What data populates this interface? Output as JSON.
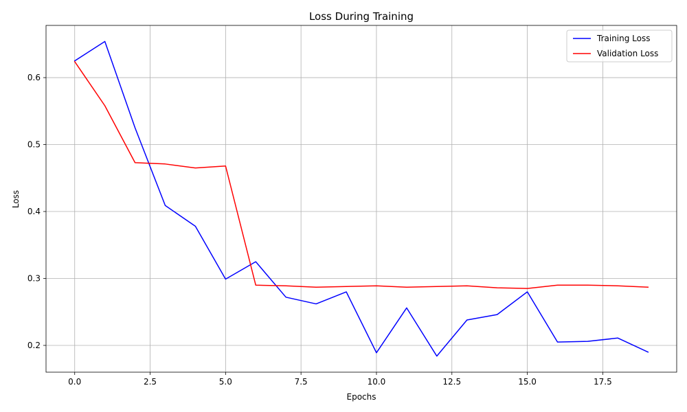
{
  "chart_data": {
    "type": "line",
    "title": "Loss During Training",
    "xlabel": "Epochs",
    "ylabel": "Loss",
    "xlim": [
      -0.95,
      19.95
    ],
    "ylim": [
      0.16,
      0.678
    ],
    "xticks": [
      0.0,
      2.5,
      5.0,
      7.5,
      10.0,
      12.5,
      15.0,
      17.5
    ],
    "xtick_labels": [
      "0.0",
      "2.5",
      "5.0",
      "7.5",
      "10.0",
      "12.5",
      "15.0",
      "17.5"
    ],
    "yticks": [
      0.2,
      0.3,
      0.4,
      0.5,
      0.6
    ],
    "ytick_labels": [
      "0.2",
      "0.3",
      "0.4",
      "0.5",
      "0.6"
    ],
    "grid": true,
    "legend_position": "top-right",
    "x": [
      0,
      1,
      2,
      3,
      4,
      5,
      6,
      7,
      8,
      9,
      10,
      11,
      12,
      13,
      14,
      15,
      16,
      17,
      18,
      19
    ],
    "series": [
      {
        "name": "Training Loss",
        "color": "#0000ff",
        "values": [
          0.625,
          0.654,
          0.525,
          0.409,
          0.378,
          0.299,
          0.325,
          0.272,
          0.262,
          0.28,
          0.189,
          0.256,
          0.184,
          0.238,
          0.246,
          0.28,
          0.205,
          0.206,
          0.211,
          0.19
        ]
      },
      {
        "name": "Validation Loss",
        "color": "#ff0000",
        "values": [
          0.624,
          0.558,
          0.473,
          0.471,
          0.465,
          0.468,
          0.29,
          0.289,
          0.287,
          0.288,
          0.289,
          0.287,
          0.288,
          0.289,
          0.286,
          0.285,
          0.29,
          0.29,
          0.289,
          0.287
        ]
      }
    ]
  }
}
